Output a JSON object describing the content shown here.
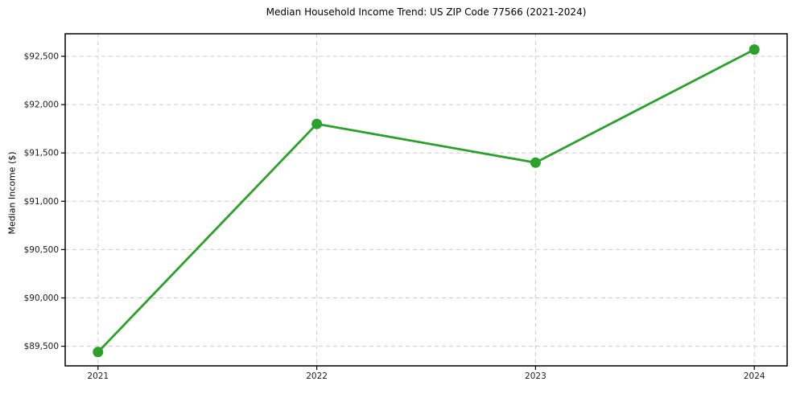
{
  "figure": {
    "background": "#ffffff"
  },
  "chart_data": {
    "type": "line",
    "title": "Median Household Income Trend: US ZIP Code 77566 (2021-2024)",
    "xlabel": "",
    "ylabel": "Median Income ($)",
    "x": [
      2021,
      2022,
      2023,
      2024
    ],
    "x_tick_labels": [
      "2021",
      "2022",
      "2023",
      "2024"
    ],
    "series": [
      {
        "name": "Median Household Income",
        "values": [
          89440,
          91800,
          91400,
          92570
        ]
      }
    ],
    "y_ticks": [
      89500,
      90000,
      90500,
      91000,
      91500,
      92000,
      92500
    ],
    "y_tick_labels": [
      "$89,500",
      "$90,000",
      "$90,500",
      "$91,000",
      "$91,500",
      "$92,000",
      "$92,500"
    ],
    "xlim": [
      2020.85,
      2024.15
    ],
    "ylim": [
      89297,
      92733
    ],
    "grid": true,
    "grid_style": "dashed",
    "legend_position": "none",
    "line_color": "#2ca02c",
    "marker": "circle",
    "marker_radius": 6.5,
    "grid_color": "#cccccc",
    "text_color": "#1a1a1a"
  }
}
